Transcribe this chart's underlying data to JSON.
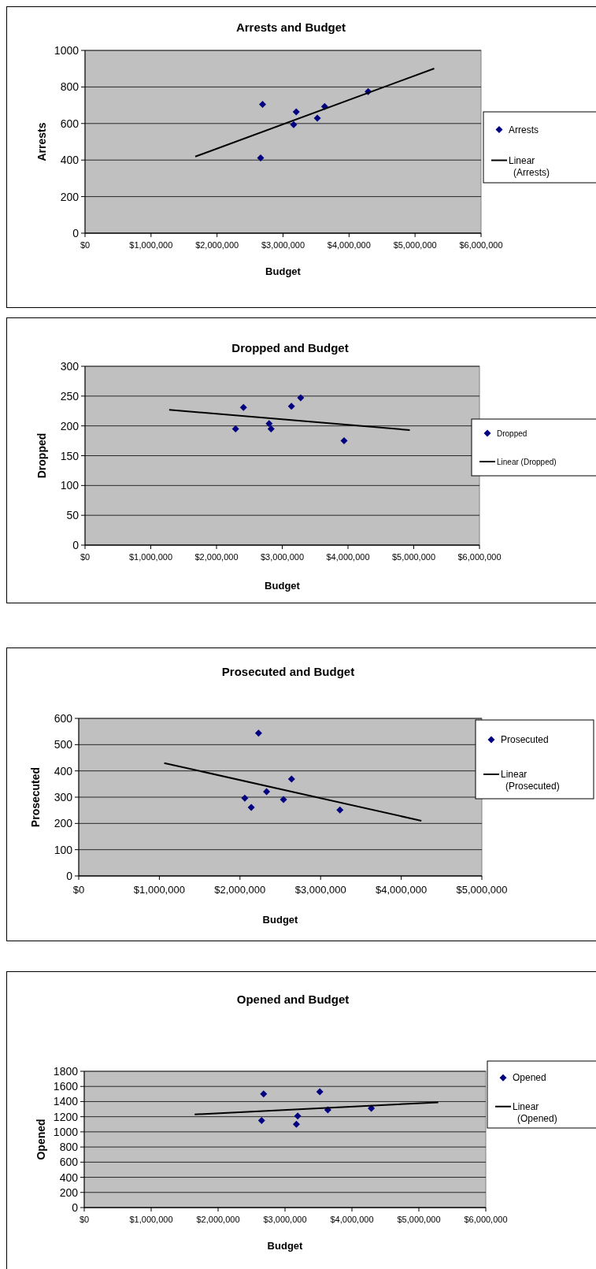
{
  "chart_data": [
    {
      "type": "scatter",
      "title": "Arrests and Budget",
      "xlabel": "Budget",
      "ylabel": "Arrests",
      "xlim": [
        0,
        6000000
      ],
      "xticks": [
        {
          "value": 0,
          "label": "$0"
        },
        {
          "value": 1000000,
          "label": "$1,000,000"
        },
        {
          "value": 2000000,
          "label": "$2,000,000"
        },
        {
          "value": 3000000,
          "label": "$3,000,000"
        },
        {
          "value": 4000000,
          "label": "$4,000,000"
        },
        {
          "value": 5000000,
          "label": "$5,000,000"
        },
        {
          "value": 6000000,
          "label": "$6,000,000"
        }
      ],
      "ylim": [
        0,
        1000
      ],
      "yticks": [
        0,
        200,
        400,
        600,
        800,
        1000
      ],
      "grid": "y",
      "legend": "right",
      "series": [
        {
          "name": "Arrests",
          "type": "scatter",
          "color": "#000080",
          "marker": "diamond",
          "x": [
            2690000,
            2660000,
            3160000,
            3200000,
            3520000,
            3630000,
            4290000
          ],
          "values": [
            705,
            412,
            594,
            664,
            629,
            693,
            775
          ]
        },
        {
          "name": "Linear (Arrests)",
          "type": "line",
          "color": "#000000",
          "x": [
            1670000,
            5290000
          ],
          "values": [
            419,
            901
          ]
        }
      ]
    },
    {
      "type": "scatter",
      "title": "Dropped and Budget",
      "xlabel": "Budget",
      "ylabel": "Dropped",
      "xlim": [
        0,
        6000000
      ],
      "xticks": [
        {
          "value": 0,
          "label": "$0"
        },
        {
          "value": 1000000,
          "label": "$1,000,000"
        },
        {
          "value": 2000000,
          "label": "$2,000,000"
        },
        {
          "value": 3000000,
          "label": "$3,000,000"
        },
        {
          "value": 4000000,
          "label": "$4,000,000"
        },
        {
          "value": 5000000,
          "label": "$5,000,000"
        },
        {
          "value": 6000000,
          "label": "$6,000,000"
        }
      ],
      "ylim": [
        0,
        300
      ],
      "yticks": [
        0,
        50,
        100,
        150,
        200,
        250,
        300
      ],
      "grid": "y",
      "legend": "right",
      "series": [
        {
          "name": "Dropped",
          "type": "scatter",
          "color": "#000080",
          "marker": "diamond",
          "x": [
            2290000,
            2410000,
            2800000,
            2830000,
            3140000,
            3280000,
            3940000
          ],
          "values": [
            195,
            231,
            204,
            195,
            233,
            247,
            175
          ]
        },
        {
          "name": "Linear (Dropped)",
          "type": "line",
          "color": "#000000",
          "x": [
            1280000,
            4940000
          ],
          "values": [
            227,
            193
          ]
        }
      ]
    },
    {
      "type": "scatter",
      "title": "Prosecuted and Budget",
      "xlabel": "Budget",
      "ylabel": "Prosecuted",
      "xlim": [
        0,
        5000000
      ],
      "xticks": [
        {
          "value": 0,
          "label": "$0"
        },
        {
          "value": 1000000,
          "label": "$1,000,000"
        },
        {
          "value": 2000000,
          "label": "$2,000,000"
        },
        {
          "value": 3000000,
          "label": "$3,000,000"
        },
        {
          "value": 4000000,
          "label": "$4,000,000"
        },
        {
          "value": 5000000,
          "label": "$5,000,000"
        }
      ],
      "ylim": [
        0,
        600
      ],
      "yticks": [
        0,
        100,
        200,
        300,
        400,
        500,
        600
      ],
      "grid": "y",
      "legend": "right",
      "series": [
        {
          "name": "Prosecuted",
          "type": "scatter",
          "color": "#000080",
          "marker": "diamond",
          "x": [
            2060000,
            2140000,
            2230000,
            2330000,
            2540000,
            2640000,
            3240000
          ],
          "values": [
            296,
            261,
            544,
            321,
            291,
            369,
            251
          ]
        },
        {
          "name": "Linear (Prosecuted)",
          "type": "line",
          "color": "#000000",
          "x": [
            1060000,
            4250000
          ],
          "values": [
            430,
            210
          ]
        }
      ]
    },
    {
      "type": "scatter",
      "title": "Opened and Budget",
      "xlabel": "Budget",
      "ylabel": "Opened",
      "xlim": [
        0,
        6000000
      ],
      "xticks": [
        {
          "value": 0,
          "label": "$0"
        },
        {
          "value": 1000000,
          "label": "$1,000,000"
        },
        {
          "value": 2000000,
          "label": "$2,000,000"
        },
        {
          "value": 3000000,
          "label": "$3,000,000"
        },
        {
          "value": 4000000,
          "label": "$4,000,000"
        },
        {
          "value": 5000000,
          "label": "$5,000,000"
        },
        {
          "value": 6000000,
          "label": "$6,000,000"
        }
      ],
      "ylim": [
        0,
        1800
      ],
      "yticks": [
        0,
        200,
        400,
        600,
        800,
        1000,
        1200,
        1400,
        1600,
        1800
      ],
      "grid": "y",
      "legend": "right",
      "series": [
        {
          "name": "Opened",
          "type": "scatter",
          "color": "#000080",
          "marker": "diamond",
          "x": [
            2680000,
            2650000,
            3170000,
            3190000,
            3520000,
            3640000,
            4290000
          ],
          "values": [
            1500,
            1150,
            1100,
            1210,
            1530,
            1290,
            1310
          ]
        },
        {
          "name": "Linear (Opened)",
          "type": "line",
          "color": "#000000",
          "x": [
            1650000,
            5290000
          ],
          "values": [
            1230,
            1390
          ]
        }
      ]
    }
  ]
}
